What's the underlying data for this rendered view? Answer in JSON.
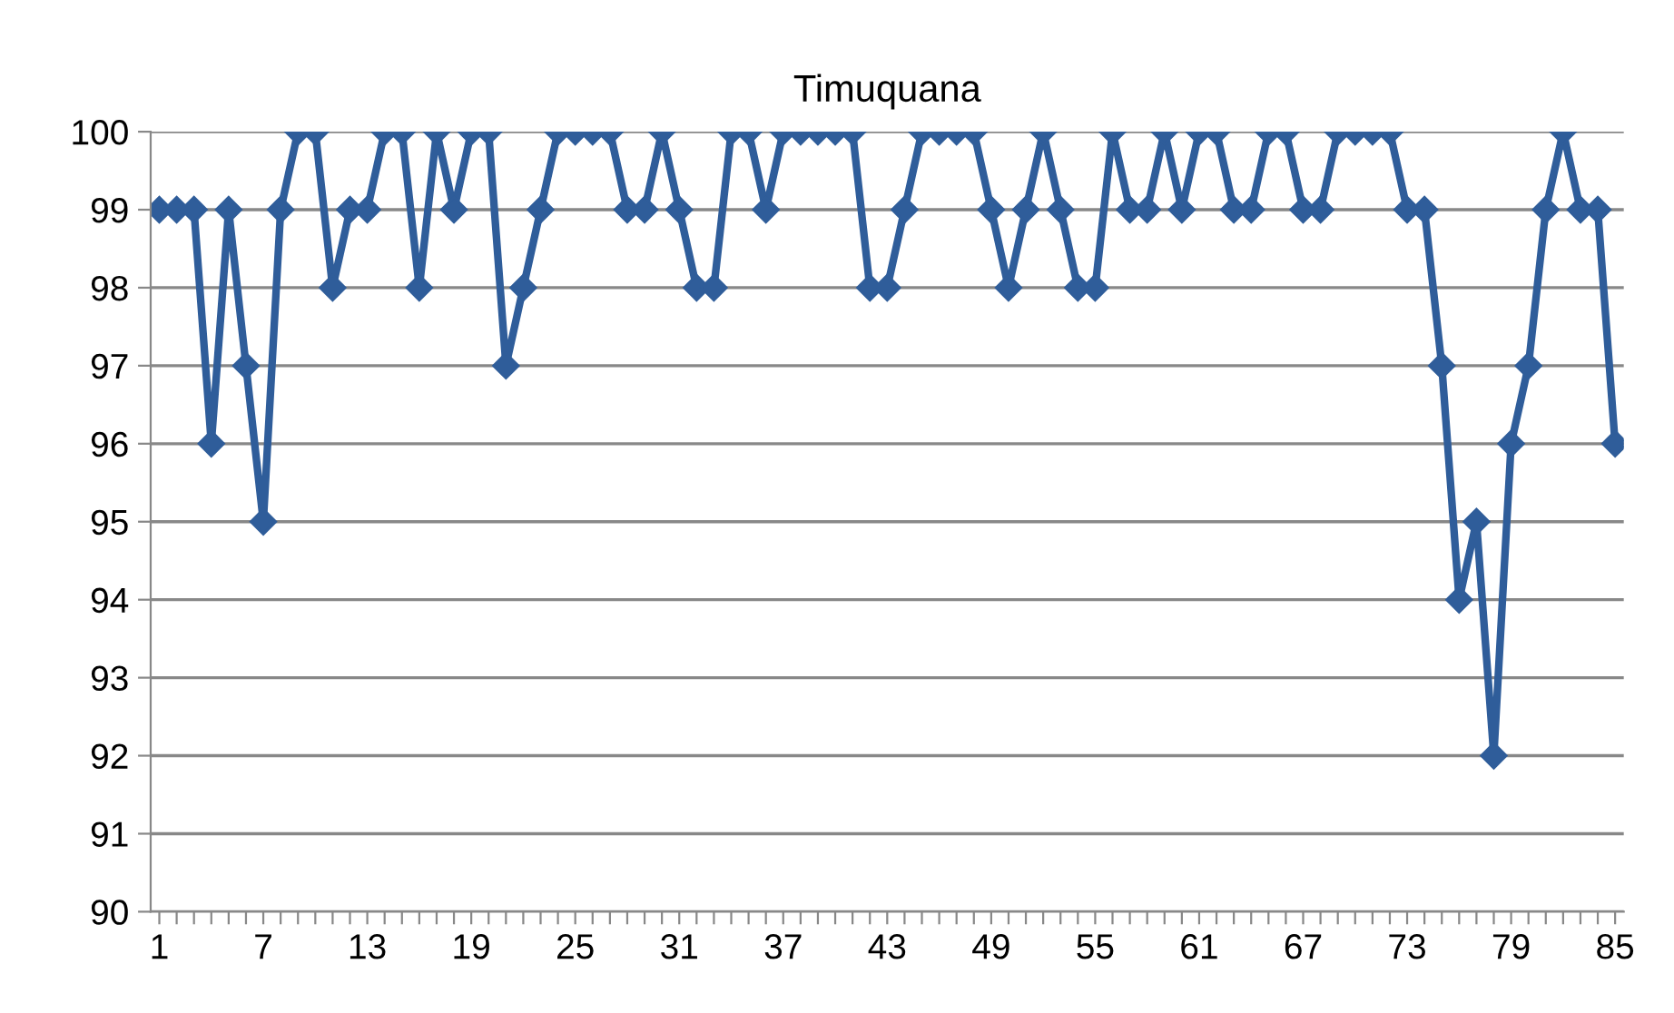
{
  "chart_data": {
    "type": "line",
    "title": "Timuquana",
    "categories": [
      "1",
      null,
      null,
      null,
      null,
      null,
      "7",
      null,
      null,
      null,
      null,
      null,
      "13",
      null,
      null,
      null,
      null,
      null,
      "19",
      null,
      null,
      null,
      null,
      null,
      "25",
      null,
      null,
      null,
      null,
      null,
      "31",
      null,
      null,
      null,
      null,
      null,
      "37",
      null,
      null,
      null,
      null,
      null,
      "43",
      null,
      null,
      null,
      null,
      null,
      "49",
      null,
      null,
      null,
      null,
      null,
      "55",
      null,
      null,
      null,
      null,
      null,
      "61",
      null,
      null,
      null,
      null,
      null,
      "67",
      null,
      null,
      null,
      null,
      null,
      "73",
      null,
      null,
      null,
      null,
      null,
      "79",
      null,
      null,
      null,
      null,
      null,
      "85"
    ],
    "series": [
      {
        "color": "#2f5d9a",
        "values": [
          99,
          99,
          99,
          96,
          99,
          97,
          95,
          99,
          100,
          100,
          98,
          99,
          99,
          100,
          100,
          98,
          100,
          99,
          100,
          100,
          97,
          98,
          99,
          100,
          100,
          100,
          100,
          99,
          99,
          100,
          99,
          98,
          98,
          100,
          100,
          99,
          100,
          100,
          100,
          100,
          100,
          98,
          98,
          99,
          100,
          100,
          100,
          100,
          99,
          98,
          99,
          100,
          99,
          98,
          98,
          100,
          99,
          99,
          100,
          99,
          100,
          100,
          99,
          99,
          100,
          100,
          99,
          99,
          100,
          100,
          100,
          100,
          99,
          99,
          97,
          94,
          95,
          92,
          96,
          97,
          99,
          100,
          99,
          99,
          96
        ]
      }
    ],
    "ylim": [
      90,
      100
    ],
    "yticks": [
      90,
      91,
      92,
      93,
      94,
      95,
      96,
      97,
      98,
      99,
      100
    ],
    "grid": "y",
    "marker": "diamond",
    "line_style": "solid"
  }
}
